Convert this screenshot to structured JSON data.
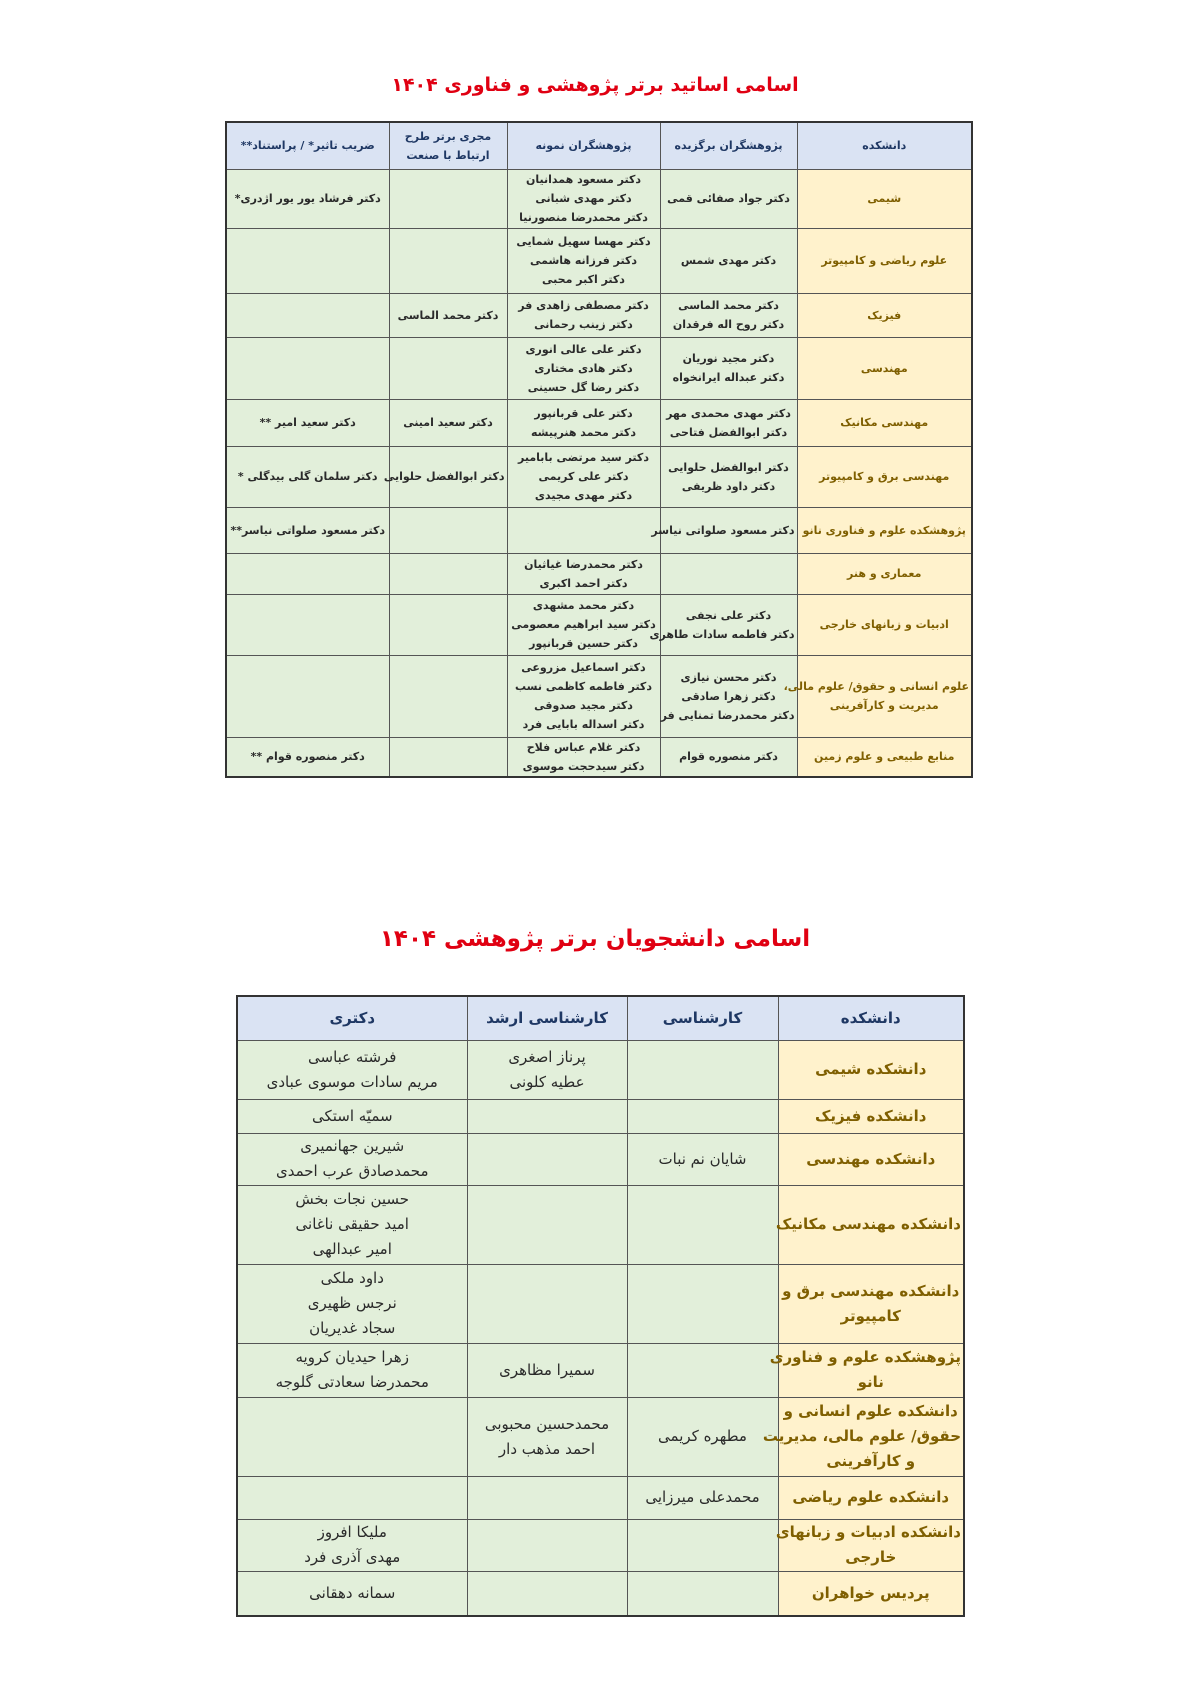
{
  "professors": {
    "title": "اسامی اساتید برتر پژوهشی و فناوری ۱۴۰۴",
    "headers": [
      "دانشکده",
      "پژوهشگران برگزیده",
      "پژوهشگران نمونه",
      "مجری برتر طرح ارتباط با صنعت",
      "ضریب تاثیر* / پراستناد**"
    ],
    "rows": [
      {
        "faculty": [
          "شیمی"
        ],
        "selected": [
          "دکتر جواد صفائی قمی"
        ],
        "exemplary": [
          "دکتر مسعود همدانیان",
          "دکتر مهدی شبانی",
          "دکتر محمدرضا منصورنیا"
        ],
        "industry": [],
        "impact": [
          "دکتر فرشاد یور یور اژدری*"
        ]
      },
      {
        "faculty": [
          "علوم ریاضی و کامپیوتر"
        ],
        "selected": [
          "دکتر مهدی شمس"
        ],
        "exemplary": [
          "دکتر مهسا سهیل شمایی",
          "دکتر فرزانه هاشمی",
          "دکتر اکبر محبی"
        ],
        "industry": [],
        "impact": []
      },
      {
        "faculty": [
          "فیزیک"
        ],
        "selected": [
          "دکتر محمد الماسی",
          "دکتر روح اله فرقدان"
        ],
        "exemplary": [
          "دکتر مصطفی زاهدی فر",
          "دکتر زینب رحمانی"
        ],
        "industry": [
          "دکتر محمد الماسی"
        ],
        "impact": []
      },
      {
        "faculty": [
          "مهندسی"
        ],
        "selected": [
          "دکتر مجید نوریان",
          "دکتر عبداله ایرانخواه"
        ],
        "exemplary": [
          "دکتر علی عالی انوری",
          "دکتر هادی مختاری",
          "دکتر رضا گل حسینی"
        ],
        "industry": [],
        "impact": []
      },
      {
        "faculty": [
          "مهندسی مکانیک"
        ],
        "selected": [
          "دکتر مهدی محمدی مهر",
          "دکتر ابوالفضل فتاحی"
        ],
        "exemplary": [
          "دکتر علی قربانپور",
          "دکتر محمد هنرپیشه"
        ],
        "industry": [
          "دکتر سعید امینی"
        ],
        "impact": [
          "دکتر سعید امیر **"
        ]
      },
      {
        "faculty": [
          "مهندسی برق و کامپیوتر"
        ],
        "selected": [
          "دکتر ابوالفضل حلوایی",
          "دکتر داود ظریفی"
        ],
        "exemplary": [
          "دکتر سید مرتضی بابامیر",
          "دکتر علی کریمی",
          "دکتر مهدی مجیدی"
        ],
        "industry": [
          "دکتر ابوالفضل حلوایی"
        ],
        "impact": [
          "دکتر سلمان گلی بیدگلی *"
        ]
      },
      {
        "faculty": [
          "پژوهشکده علوم و فناوری نانو"
        ],
        "selected": [
          "دکتر مسعود صلواتی نیاسر"
        ],
        "exemplary": [],
        "industry": [],
        "impact": [
          "دکتر مسعود صلواتی نیاسر**"
        ]
      },
      {
        "faculty": [
          "معماری و هنر"
        ],
        "selected": [],
        "exemplary": [
          "دکتر محمدرضا غیاثیان",
          "دکتر احمد اکبری"
        ],
        "industry": [],
        "impact": []
      },
      {
        "faculty": [
          "ادبیات و زبانهای خارجی"
        ],
        "selected": [
          "دکتر علی نجفی",
          "دکتر فاطمه سادات طاهری"
        ],
        "exemplary": [
          "دکتر محمد مشهدی",
          "دکتر سید ابراهیم معصومی",
          "دکتر حسین قربانپور"
        ],
        "industry": [],
        "impact": []
      },
      {
        "faculty": [
          "علوم انسانی و حقوق/ علوم مالی،",
          "مدیریت و کارآفرینی"
        ],
        "selected": [
          "دکتر محسن نیازی",
          "دکتر زهرا صادقی",
          "دکتر محمدرضا تمنایی فر"
        ],
        "exemplary": [
          "دکتر اسماعیل مزروعی",
          "دکتر فاطمه کاظمی نسب",
          "دکتر مجید صدوقی",
          "دکتر اسداله بابایی فرد"
        ],
        "industry": [],
        "impact": []
      },
      {
        "faculty": [
          "منابع طبیعی و علوم زمین"
        ],
        "selected": [
          "دکتر منصوره قوام"
        ],
        "exemplary": [
          "دکتر غلام عباس فلاح",
          "دکتر سیدحجت موسوی"
        ],
        "industry": [],
        "impact": [
          "دکتر منصوره قوام **"
        ]
      }
    ]
  },
  "students": {
    "title": "اسامی دانشجویان برتر پژوهشی ۱۴۰۴",
    "headers": [
      "دانشکده",
      "کارشناسی",
      "کارشناسی ارشد",
      "دکتری"
    ],
    "rows": [
      {
        "faculty": [
          "دانشکده شیمی"
        ],
        "bachelor": [],
        "master": [
          "پرناز اصغری",
          "عطیه کلونی"
        ],
        "phd": [
          "فرشته عباسی",
          "مریم سادات موسوی عبادی"
        ]
      },
      {
        "faculty": [
          "دانشکده فیزیک"
        ],
        "bachelor": [],
        "master": [],
        "phd": [
          "سمیّه استکی"
        ]
      },
      {
        "faculty": [
          "دانشکده مهندسی"
        ],
        "bachelor": [
          "شایان نم نبات"
        ],
        "master": [],
        "phd": [
          "شیرین جهانمیری",
          "محمدصادق عرب احمدی"
        ]
      },
      {
        "faculty": [
          "دانشکده مهندسی مکانیک"
        ],
        "bachelor": [],
        "master": [],
        "phd": [
          "حسین نجات بخش",
          "امید حقیقی ناغانی",
          "امیر عبدالهی"
        ]
      },
      {
        "faculty": [
          "دانشکده مهندسی برق و",
          "کامپیوتر"
        ],
        "bachelor": [],
        "master": [],
        "phd": [
          "داود ملکی",
          "نرجس ظهیری",
          "سجاد غدیریان"
        ]
      },
      {
        "faculty": [
          "پژوهشکده علوم و فناوری",
          "نانو"
        ],
        "bachelor": [],
        "master": [
          "سمیرا مظاهری"
        ],
        "phd": [
          "زهرا حیدیان کرویه",
          "محمدرضا سعادتی گلوجه"
        ]
      },
      {
        "faculty": [
          "دانشکده علوم انسانی و",
          "حقوق/ علوم مالی، مدیریت",
          "و کارآفرینی"
        ],
        "bachelor": [
          "مطهره کریمی"
        ],
        "master": [
          "محمدحسین محبوبی",
          "احمد مذهب دار"
        ],
        "phd": []
      },
      {
        "faculty": [
          "دانشکده علوم ریاضی"
        ],
        "bachelor": [
          "محمدعلی میرزایی"
        ],
        "master": [],
        "phd": []
      },
      {
        "faculty": [
          "دانشکده ادبیات و زبانهای",
          "خارجی"
        ],
        "bachelor": [],
        "master": [],
        "phd": [
          "ملیکا افروز",
          "مهدی آذری فرد"
        ]
      },
      {
        "faculty": [
          "پردیس خواهران"
        ],
        "bachelor": [],
        "master": [],
        "phd": [
          "سمانه دهقانی"
        ]
      }
    ]
  }
}
